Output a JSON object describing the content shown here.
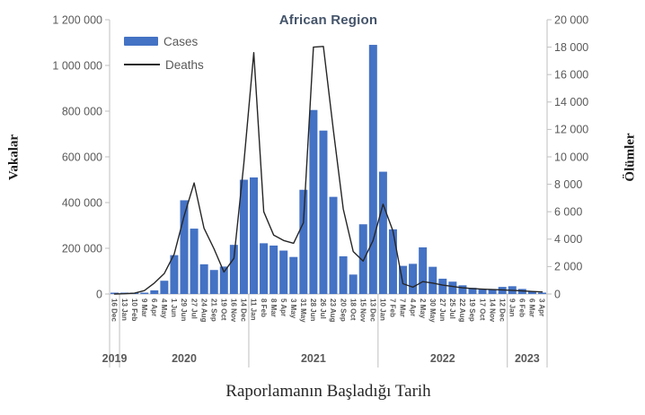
{
  "title": "African Region",
  "legend": {
    "cases_label": "Cases",
    "deaths_label": "Deaths"
  },
  "axes": {
    "left_title": "Vakalar",
    "right_title": "Ölümler",
    "x_title": "Raporlamanın Başladığı Tarih"
  },
  "colors": {
    "bar": "#4472C4",
    "line": "#262626",
    "title_text": "#44546A",
    "axis_text": "#595959",
    "axis_line": "#BFBFBF"
  },
  "chart_data": {
    "type": "bar",
    "subtype": "bar+line dual axis",
    "title": "African Region",
    "xlabel": "Raporlamanın Başladığı Tarih",
    "ylabel_left": "Vakalar",
    "ylabel_right": "Ölümler",
    "ylim_left": [
      0,
      1200000
    ],
    "ytick_step_left": 200000,
    "ylim_right": [
      0,
      20000
    ],
    "ytick_step_right": 2000,
    "grid": false,
    "legend_position": "top-left inside",
    "categories": [
      "16 Dec",
      "13 Jan",
      "10 Feb",
      "9 Mar",
      "6 Apr",
      "4 May",
      "1 Jun",
      "29 Jun",
      "27 Jul",
      "24 Aug",
      "21 Sep",
      "19 Oct",
      "16 Nov",
      "14 Dec",
      "11 Jan",
      "8 Feb",
      "8 Mar",
      "5 Apr",
      "3 May",
      "31 May",
      "28 Jun",
      "26 Jul",
      "23 Aug",
      "20 Sep",
      "18 Oct",
      "15 Nov",
      "13 Dec",
      "10 Jan",
      "7 Feb",
      "7 Mar",
      "4 Apr",
      "2 May",
      "30 May",
      "27 Jun",
      "25 Jul",
      "22 Aug",
      "19 Sep",
      "17 Oct",
      "14 Nov",
      "12 Dec",
      "9 Jan",
      "6 Feb",
      "6 Mar",
      "3 Apr"
    ],
    "year_groups": [
      {
        "label": "2019",
        "count": 1
      },
      {
        "label": "2020",
        "count": 13
      },
      {
        "label": "2021",
        "count": 13
      },
      {
        "label": "2022",
        "count": 13
      },
      {
        "label": "2023",
        "count": 4
      }
    ],
    "series": [
      {
        "name": "Cases",
        "type": "bar",
        "axis": "left",
        "values": [
          1000,
          1000,
          2000,
          5000,
          16000,
          58000,
          170000,
          410000,
          286000,
          130000,
          105000,
          120000,
          215000,
          500000,
          510000,
          222000,
          212000,
          190000,
          162000,
          456000,
          805000,
          715000,
          425000,
          165000,
          85000,
          305000,
          1090000,
          535000,
          283000,
          123000,
          132000,
          204000,
          119000,
          67000,
          54000,
          38000,
          27000,
          22000,
          22000,
          31000,
          34000,
          22000,
          12000,
          6000
        ]
      },
      {
        "name": "Deaths",
        "type": "line",
        "axis": "right",
        "values": [
          0,
          20,
          60,
          250,
          800,
          1500,
          2900,
          5700,
          8100,
          4800,
          3300,
          1600,
          2600,
          9500,
          17600,
          6000,
          4300,
          3900,
          3700,
          5200,
          18000,
          18050,
          12000,
          6200,
          3100,
          2400,
          3900,
          6550,
          4600,
          750,
          500,
          900,
          800,
          650,
          550,
          450,
          400,
          350,
          320,
          300,
          270,
          230,
          180,
          150
        ]
      }
    ]
  }
}
